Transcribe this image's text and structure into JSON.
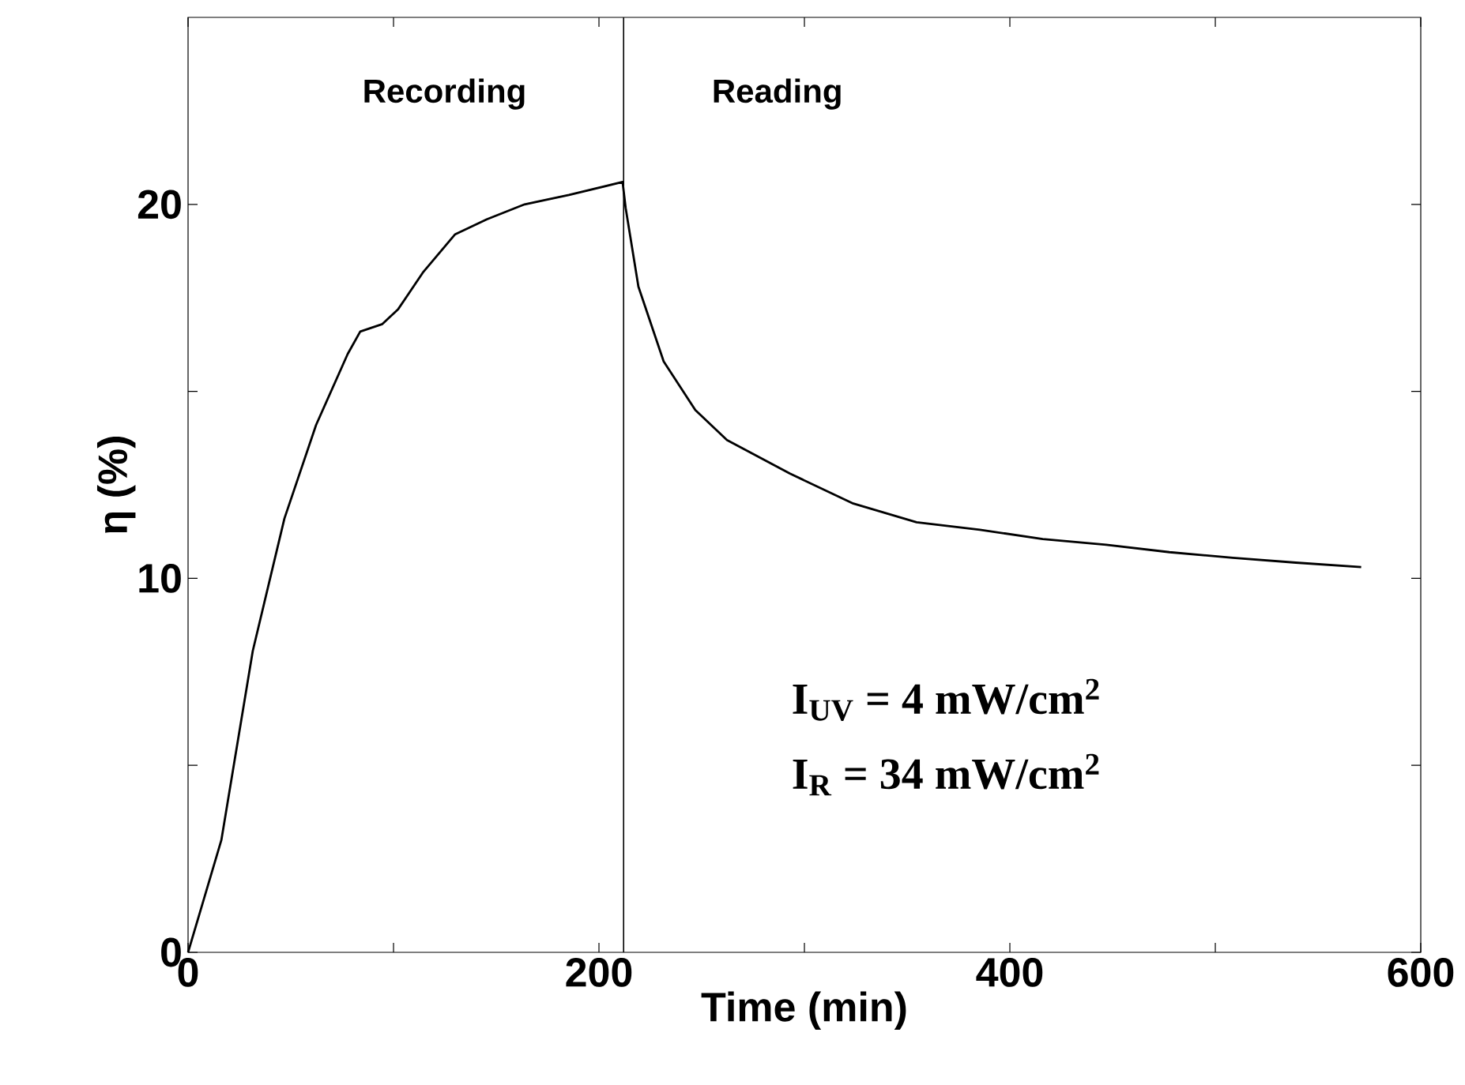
{
  "chart_data": {
    "type": "line",
    "xlabel": "Time (min)",
    "ylabel": "η (%)",
    "annotations": [
      "Recording",
      "Reading",
      "I$_{UV}$ = 4 mW/cm$^{2}$",
      "I$_{R}$ = 34 mW/cm$^{2}$"
    ],
    "xlim": [
      0,
      600
    ],
    "ylim": [
      0,
      25
    ],
    "xticks": [
      0,
      {
        "value": 100,
        "label": null
      },
      200,
      {
        "value": 300,
        "label": null
      },
      400,
      {
        "value": 500,
        "label": null
      },
      600
    ],
    "yticks": [
      0,
      {
        "value": 5,
        "label": null
      },
      10,
      {
        "value": 15,
        "label": null
      },
      20
    ],
    "ref_lines": [
      {
        "axis": "x",
        "value": 212,
        "color": "#000000"
      }
    ],
    "series": [
      {
        "color": "#000000",
        "x": [
          0,
          16.2,
          31.5,
          46.9,
          62.3,
          77.7,
          83.8,
          94.6,
          102.3,
          114.6,
          130,
          145.4,
          163.8,
          185.4,
          211.5,
          213,
          219.2,
          231.5,
          246.9,
          262.3,
          293,
          323.8,
          354.6,
          385.4,
          416,
          446.9,
          477.7,
          508.5,
          539.2,
          571
        ],
        "values": [
          0,
          3.0,
          8.06,
          11.6,
          14.1,
          16.0,
          16.6,
          16.8,
          17.2,
          18.2,
          19.2,
          19.6,
          20.0,
          20.25,
          20.6,
          19.9,
          17.8,
          15.8,
          14.5,
          13.7,
          12.8,
          12.0,
          11.5,
          11.3,
          11.05,
          10.9,
          10.7,
          10.55,
          10.42,
          10.3
        ]
      }
    ]
  }
}
